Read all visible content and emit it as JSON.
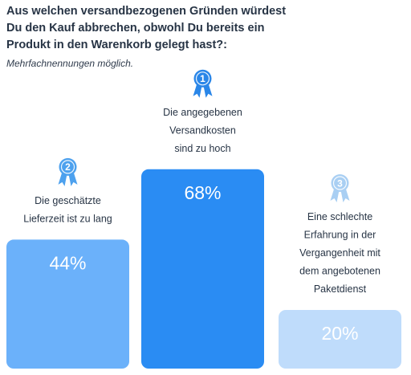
{
  "header": {
    "title": "Aus welchen versandbezogenen Gründen würdest Du den Kauf abbrechen, obwohl Du bereits ein Produkt  in den Warenkorb gelegt hast?:",
    "subtitle": "Mehrfachnennungen möglich."
  },
  "chart_data": {
    "type": "bar",
    "categories": [
      "Die geschätzte Lieferzeit ist zu lang",
      "Die angegebenen Versandkosten sind zu hoch",
      "Eine schlechte Erfahrung in der Vergangenheit mit dem angebotenen Paketdienst"
    ],
    "category_lines": [
      [
        "Die geschätzte",
        "Lieferzeit ist zu lang"
      ],
      [
        "Die angegebenen",
        "Versandkosten",
        "sind zu hoch"
      ],
      [
        "Eine schlechte",
        "Erfahrung in der",
        "Vergangenheit mit",
        "dem angebotenen",
        "Paketdienst"
      ]
    ],
    "values": [
      44,
      68,
      20
    ],
    "value_labels": [
      "44%",
      "68%",
      "20%"
    ],
    "ranks": [
      "2",
      "1",
      "3"
    ],
    "colors": [
      "#6bb1fa",
      "#2a8cf3",
      "#bfdcfb"
    ],
    "badge_colors": [
      "#4da1ee",
      "#2a86e8",
      "#a9cff3"
    ],
    "ylim": [
      0,
      100
    ]
  }
}
